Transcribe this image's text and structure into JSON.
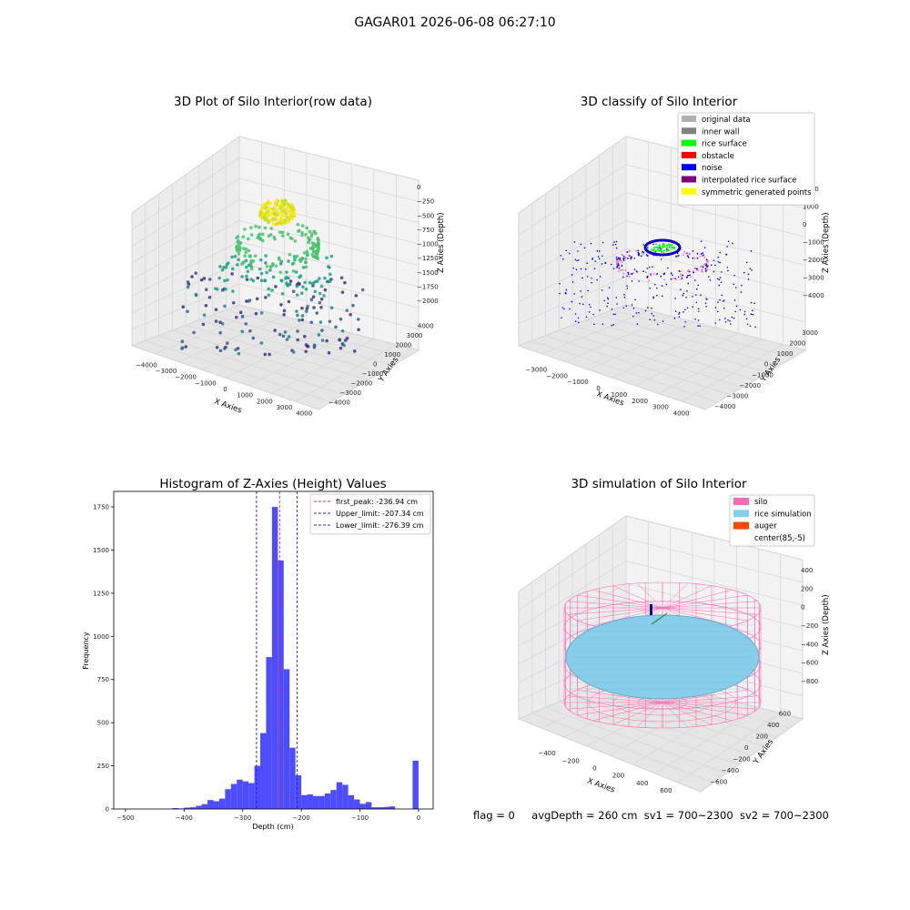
{
  "figure": {
    "suptitle": "GAGAR01 2026-06-08 06:27:10",
    "footer": {
      "flag": "flag = 0",
      "avg_depth": "avgDepth = 260 cm",
      "sv1": "sv1 = 700~2300",
      "sv2": "sv2 = 700~2300"
    }
  },
  "colors": {
    "hist_bar": "#4d4dff",
    "peak_line": "#e03030",
    "limit_line": "#2020d0",
    "silo": "#ff69b4",
    "rice": "#87ceeb",
    "auger": "#ff4500",
    "pane": "#f2f2f2"
  },
  "chart_data": [
    {
      "type": "scatter",
      "title": "3D Plot of Silo Interior(row data)",
      "xlabel": "X Axies",
      "ylabel": "Y Axies",
      "zlabel": "Z Axies (Depth)",
      "x_ticks": [
        "−4000",
        "−3000",
        "−2000",
        "−1000",
        "0",
        "1000",
        "2000",
        "3000",
        "4000"
      ],
      "y_ticks": [
        "−4000",
        "−3000",
        "−2000",
        "−1000",
        "0",
        "1000",
        "2000",
        "3000",
        "4000"
      ],
      "z_ticks": [
        "0",
        "−250",
        "−500",
        "−750",
        "−1000",
        "−1250",
        "−1500",
        "−1750",
        "−2000"
      ],
      "xlim": [
        -4000,
        4000
      ],
      "ylim": [
        -4000,
        4000
      ],
      "zlim": [
        -2000,
        0
      ],
      "grid": true
    },
    {
      "type": "scatter",
      "title": "3D classify of Silo Interior",
      "xlabel": "X Axies",
      "ylabel": "Y Axies",
      "zlabel": "Z Axies (Depth)",
      "x_ticks": [
        "−3000",
        "−2000",
        "−1000",
        "0",
        "1000",
        "2000",
        "3000",
        "4000"
      ],
      "y_ticks": [
        "−4000",
        "−3000",
        "−2000",
        "−1000",
        "0",
        "1000",
        "2000",
        "3000"
      ],
      "z_ticks": [
        "2000",
        "1000",
        "0",
        "−1000",
        "−2000",
        "−3000",
        "−4000"
      ],
      "z_ticks_partial": "000",
      "legend_position": "upper right",
      "legend": [
        {
          "label": "original data",
          "color": "#b0b0b0"
        },
        {
          "label": "inner wall",
          "color": "#808080"
        },
        {
          "label": "rice surface",
          "color": "#00ff00"
        },
        {
          "label": "obstacle",
          "color": "#ff0000"
        },
        {
          "label": "noise",
          "color": "#0000ff"
        },
        {
          "label": "interpolated rice surface",
          "color": "#800080"
        },
        {
          "label": "symmetric generated points",
          "color": "#ffff00"
        }
      ],
      "grid": true
    },
    {
      "type": "bar",
      "title": "Histogram of Z-Axies (Height) Values",
      "xlabel": "Depth (cm)",
      "ylabel": "Frequency",
      "xlim": [
        -520,
        25
      ],
      "ylim": [
        0,
        1840
      ],
      "x_ticks": [
        -500,
        -400,
        -300,
        -200,
        -100,
        0
      ],
      "x_tick_labels": [
        "−500",
        "−400",
        "−300",
        "−200",
        "−100",
        "0"
      ],
      "y_ticks": [
        0,
        250,
        500,
        750,
        1000,
        1250,
        1500,
        1750
      ],
      "y_tick_labels": [
        "0",
        "250",
        "500",
        "750",
        "1000",
        "1250",
        "1500",
        "1750"
      ],
      "bin_width": 10,
      "bins": [
        {
          "x": -420,
          "value": 5
        },
        {
          "x": -410,
          "value": 3
        },
        {
          "x": -400,
          "value": 8
        },
        {
          "x": -390,
          "value": 10
        },
        {
          "x": -380,
          "value": 18
        },
        {
          "x": -370,
          "value": 28
        },
        {
          "x": -360,
          "value": 52
        },
        {
          "x": -350,
          "value": 45
        },
        {
          "x": -340,
          "value": 60
        },
        {
          "x": -330,
          "value": 115
        },
        {
          "x": -320,
          "value": 145
        },
        {
          "x": -310,
          "value": 170
        },
        {
          "x": -300,
          "value": 160
        },
        {
          "x": -290,
          "value": 150
        },
        {
          "x": -280,
          "value": 250
        },
        {
          "x": -270,
          "value": 440
        },
        {
          "x": -260,
          "value": 880
        },
        {
          "x": -250,
          "value": 1750
        },
        {
          "x": -240,
          "value": 1440
        },
        {
          "x": -230,
          "value": 810
        },
        {
          "x": -220,
          "value": 355
        },
        {
          "x": -210,
          "value": 195
        },
        {
          "x": -200,
          "value": 80
        },
        {
          "x": -190,
          "value": 85
        },
        {
          "x": -180,
          "value": 75
        },
        {
          "x": -170,
          "value": 75
        },
        {
          "x": -160,
          "value": 90
        },
        {
          "x": -150,
          "value": 110
        },
        {
          "x": -140,
          "value": 155
        },
        {
          "x": -130,
          "value": 140
        },
        {
          "x": -120,
          "value": 80
        },
        {
          "x": -110,
          "value": 55
        },
        {
          "x": -100,
          "value": 30
        },
        {
          "x": -90,
          "value": 40
        },
        {
          "x": -80,
          "value": 10
        },
        {
          "x": -70,
          "value": 10
        },
        {
          "x": -60,
          "value": 12
        },
        {
          "x": -50,
          "value": 15
        },
        {
          "x": -10,
          "value": 280
        }
      ],
      "lines": [
        {
          "label": "first_peak: -236.94 cm",
          "x": -236.94,
          "color": "#e03030"
        },
        {
          "label": "Upper_limit: -207.34 cm",
          "x": -207.34,
          "color": "#2020d0"
        },
        {
          "label": "Lower_limit: -276.39 cm",
          "x": -276.39,
          "color": "#2020d0"
        }
      ],
      "legend_position": "upper right"
    },
    {
      "type": "area",
      "title": "3D simulation of Silo Interior",
      "xlabel": "X Axies",
      "ylabel": "Y Axies",
      "zlabel": "Z Axies (Depth)",
      "x_ticks": [
        "−400",
        "−200",
        "0",
        "200",
        "400",
        "600"
      ],
      "y_ticks": [
        "−600",
        "−400",
        "−200",
        "0",
        "200",
        "400",
        "600"
      ],
      "z_ticks": [
        "400",
        "200",
        "0",
        "−200",
        "−400",
        "−600",
        "−800"
      ],
      "legend_position": "upper right",
      "legend": [
        {
          "label": "silo",
          "color": "#ff69b4"
        },
        {
          "label": "rice simulation",
          "color": "#87ceeb"
        },
        {
          "label": "auger",
          "color": "#ff4500"
        },
        {
          "label": "center(85,-5)",
          "color": ""
        }
      ],
      "grid": true
    }
  ]
}
